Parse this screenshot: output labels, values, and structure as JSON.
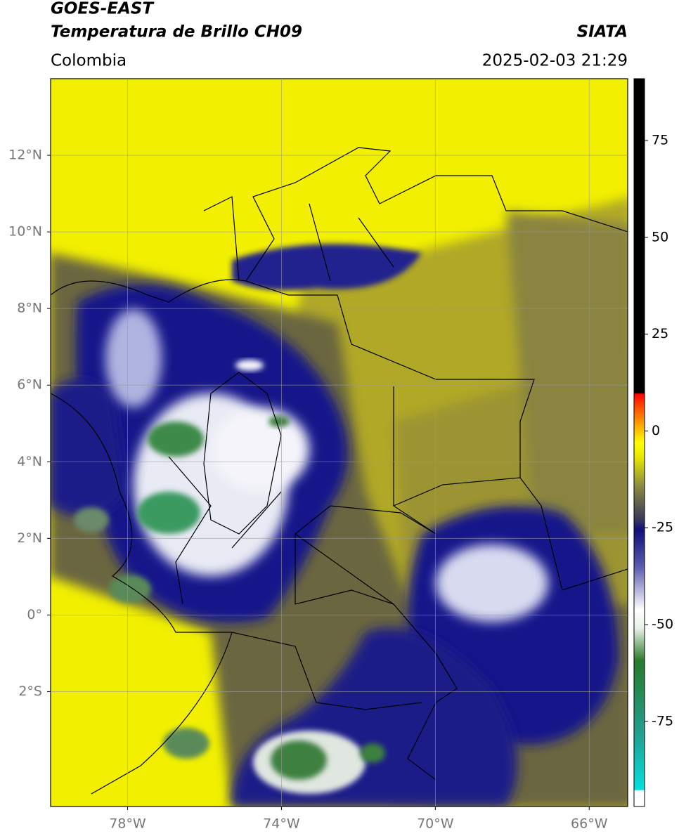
{
  "header": {
    "title": "GOES-EAST",
    "subtitle": "Temperatura de Brillo CH09",
    "source": "SIATA",
    "region": "Colombia",
    "datetime": "2025-02-03 21:29"
  },
  "map": {
    "xlim": [
      -80,
      -65
    ],
    "ylim": [
      -5,
      14
    ],
    "xticks": [
      {
        "value": -78,
        "label": "78°W"
      },
      {
        "value": -74,
        "label": "74°W"
      },
      {
        "value": -70,
        "label": "70°W"
      },
      {
        "value": -66,
        "label": "66°W"
      }
    ],
    "yticks": [
      {
        "value": 12,
        "label": "12°N"
      },
      {
        "value": 10,
        "label": "10°N"
      },
      {
        "value": 8,
        "label": "8°N"
      },
      {
        "value": 6,
        "label": "6°N"
      },
      {
        "value": 4,
        "label": "4°N"
      },
      {
        "value": 2,
        "label": "2°N"
      },
      {
        "value": 0,
        "label": "0°"
      },
      {
        "value": -2,
        "label": "2°S"
      }
    ],
    "grid": true
  },
  "colorbar": {
    "lim": [
      -97,
      91
    ],
    "ticks": [
      75,
      50,
      25,
      0,
      -25,
      -50,
      -75
    ]
  }
}
